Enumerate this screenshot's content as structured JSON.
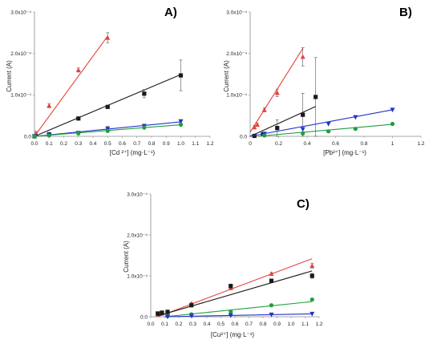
{
  "chart_data": [
    {
      "type": "scatter",
      "panel_label": "A)",
      "xlabel": "[Cd ²⁺] (mg·L⁻¹)",
      "ylabel": "Current (A)",
      "xlim": [
        0,
        1.2
      ],
      "ylim": [
        0,
        0.0003
      ],
      "xticks": [
        "0.0",
        "0.1",
        "0.2",
        "0.3",
        "0.4",
        "0.5",
        "0.6",
        "0.7",
        "0.8",
        "0.9",
        "1.0",
        "1.1",
        "1.2"
      ],
      "yticks": [
        {
          "value": 0,
          "label": "0.0"
        },
        {
          "value": 0.0001,
          "label": "1.0x10⁻⁴"
        },
        {
          "value": 0.0002,
          "label": "2.0x10⁻⁴"
        },
        {
          "value": 0.0003,
          "label": "3.0x10⁻⁴"
        }
      ],
      "grid": false,
      "series": [
        {
          "color": "#e8413c",
          "marker": "triangle-up",
          "x": [
            0.01,
            0.1,
            0.3,
            0.5
          ],
          "y": [
            7e-06,
            7.4e-05,
            0.00016,
            0.000238
          ],
          "err": [
            5e-06,
            5e-06,
            5e-06,
            1.2e-05
          ],
          "fit": [
            [
              0.0,
              0.0
            ],
            [
              0.5,
              0.000242
            ]
          ]
        },
        {
          "color": "#1a1a1a",
          "marker": "square",
          "x": [
            0.0,
            0.1,
            0.3,
            0.5,
            0.75,
            1.0
          ],
          "y": [
            0.0,
            5e-06,
            4.3e-05,
            7.1e-05,
            0.000103,
            0.000147
          ],
          "err": [
            0,
            2e-06,
            3e-06,
            3e-06,
            1e-05,
            3.7e-05
          ],
          "fit": [
            [
              0.0,
              0.0
            ],
            [
              1.0,
              0.000149
            ]
          ]
        },
        {
          "color": "#2233cc",
          "marker": "triangle-down",
          "x": [
            0.0,
            0.1,
            0.3,
            0.5,
            0.75,
            1.0
          ],
          "y": [
            0.0,
            4e-06,
            8e-06,
            1.8e-05,
            2.5e-05,
            3.6e-05
          ],
          "err": [
            0,
            0,
            0,
            6e-06,
            3e-06,
            4e-06
          ],
          "fit": [
            [
              0.0,
              0.0
            ],
            [
              1.0,
              3.5e-05
            ]
          ]
        },
        {
          "color": "#1e9e3e",
          "marker": "circle",
          "x": [
            0.0,
            0.1,
            0.3,
            0.5,
            0.75,
            1.0
          ],
          "y": [
            0.0,
            2e-06,
            7e-06,
            1.3e-05,
            2.1e-05,
            2.8e-05
          ],
          "err": [
            0,
            0,
            0,
            0,
            0,
            0
          ],
          "fit": [
            [
              0.0,
              0.0
            ],
            [
              1.0,
              2.8e-05
            ]
          ]
        }
      ]
    },
    {
      "type": "scatter",
      "panel_label": "B)",
      "xlabel": "[Pb²⁺] (mg·L⁻¹)",
      "ylabel": "Current (A)",
      "xlim": [
        0,
        1.2
      ],
      "ylim": [
        0,
        0.0003
      ],
      "xticks": [
        "0",
        "0.2",
        "0.4",
        "0.6",
        "0.8",
        "1",
        "1.2"
      ],
      "yticks": [
        {
          "value": 0,
          "label": "0.0"
        },
        {
          "value": 0.0001,
          "label": "1.0x10⁻⁴"
        },
        {
          "value": 0.0002,
          "label": "2.0x10⁻⁴"
        },
        {
          "value": 0.0003,
          "label": "3.0x10⁻⁴"
        }
      ],
      "grid": false,
      "series": [
        {
          "color": "#e8413c",
          "marker": "triangle-up",
          "x": [
            0.03,
            0.05,
            0.1,
            0.19,
            0.37
          ],
          "y": [
            2.2e-05,
            2.8e-05,
            6.4e-05,
            0.000105,
            0.000192
          ],
          "err": [
            4e-06,
            4e-06,
            5e-06,
            9e-06,
            2.2e-05
          ],
          "fit": [
            [
              0.0,
              1e-05
            ],
            [
              0.37,
              0.000212
            ]
          ]
        },
        {
          "color": "#1a1a1a",
          "marker": "square",
          "x": [
            0.03,
            0.09,
            0.19,
            0.37,
            0.46
          ],
          "y": [
            1e-06,
            5e-06,
            2e-05,
            5.2e-05,
            9.5e-05
          ],
          "err": [
            0,
            3e-06,
            2e-05,
            5.2e-05,
            9.5e-05
          ],
          "fit": [
            [
              0.0,
              0.0
            ],
            [
              0.46,
              7.2e-05
            ]
          ]
        },
        {
          "color": "#2233cc",
          "marker": "triangle-down",
          "x": [
            0.1,
            0.37,
            0.55,
            0.74,
            1.0
          ],
          "y": [
            6e-06,
            1.7e-05,
            3e-05,
            4.6e-05,
            6.4e-05
          ],
          "err": [
            0,
            0,
            0,
            0,
            0
          ],
          "fit": [
            [
              0.0,
              0.0
            ],
            [
              1.0,
              6.4e-05
            ]
          ]
        },
        {
          "color": "#1e9e3e",
          "marker": "circle",
          "x": [
            0.1,
            0.37,
            0.55,
            0.74,
            1.0
          ],
          "y": [
            2e-06,
            7e-06,
            1.2e-05,
            1.8e-05,
            3e-05
          ],
          "err": [
            0,
            0,
            0,
            0,
            0
          ],
          "fit": [
            [
              0.05,
              0.0
            ],
            [
              1.0,
              2.9e-05
            ]
          ]
        }
      ]
    },
    {
      "type": "scatter",
      "panel_label": "C)",
      "xlabel": "[Cu²⁺] (mg·L⁻¹)",
      "ylabel": "Current (A)",
      "xlim": [
        0,
        1.2
      ],
      "ylim": [
        0,
        0.0003
      ],
      "xticks": [
        "0.0",
        "0.1",
        "0.2",
        "0.3",
        "0.4",
        "0.5",
        "0.6",
        "0.7",
        "0.8",
        "0.9",
        "1.0",
        "1.1",
        "1.2"
      ],
      "yticks": [
        {
          "value": 0,
          "label": "0.0"
        },
        {
          "value": 0.0001,
          "label": "1.0x10⁻⁴"
        },
        {
          "value": 0.0002,
          "label": "2.0x10⁻⁴"
        },
        {
          "value": 0.0003,
          "label": "3.0x10⁻⁴"
        }
      ],
      "grid": false,
      "series": [
        {
          "color": "#e8413c",
          "marker": "triangle-up",
          "x": [
            0.05,
            0.08,
            0.12,
            0.29,
            0.57,
            0.86,
            1.15
          ],
          "y": [
            6e-06,
            8e-06,
            1e-05,
            3.2e-05,
            7e-05,
            0.000105,
            0.000125
          ],
          "err": [
            0,
            0,
            0,
            3e-06,
            4e-06,
            3e-06,
            6e-06
          ],
          "fit": [
            [
              0.05,
              0.0
            ],
            [
              1.15,
              0.000142
            ]
          ]
        },
        {
          "color": "#1a1a1a",
          "marker": "square",
          "x": [
            0.05,
            0.08,
            0.12,
            0.29,
            0.57,
            0.86,
            1.15
          ],
          "y": [
            8e-06,
            1e-05,
            1.2e-05,
            2.8e-05,
            7.5e-05,
            8.8e-05,
            0.0001
          ],
          "err": [
            0,
            0,
            0,
            3e-06,
            5e-06,
            3e-06,
            6e-06
          ],
          "fit": [
            [
              0.05,
              2e-06
            ],
            [
              1.15,
              0.000112
            ]
          ]
        },
        {
          "color": "#1e9e3e",
          "marker": "circle",
          "x": [
            0.12,
            0.29,
            0.57,
            0.86,
            1.15
          ],
          "y": [
            2e-06,
            6e-06,
            1.2e-05,
            2.8e-05,
            4.2e-05
          ],
          "err": [
            0,
            0,
            3e-06,
            3e-06,
            3e-06
          ],
          "fit": [
            [
              0.1,
              0.0
            ],
            [
              1.15,
              3.7e-05
            ]
          ]
        },
        {
          "color": "#2233cc",
          "marker": "triangle-down",
          "x": [
            0.12,
            0.29,
            0.57,
            0.86,
            1.15
          ],
          "y": [
            0.0,
            2e-06,
            3e-06,
            5e-06,
            7e-06
          ],
          "err": [
            0,
            0,
            0,
            0,
            0
          ],
          "fit": [
            [
              0.1,
              0.0
            ],
            [
              1.15,
              7e-06
            ]
          ]
        }
      ]
    }
  ]
}
